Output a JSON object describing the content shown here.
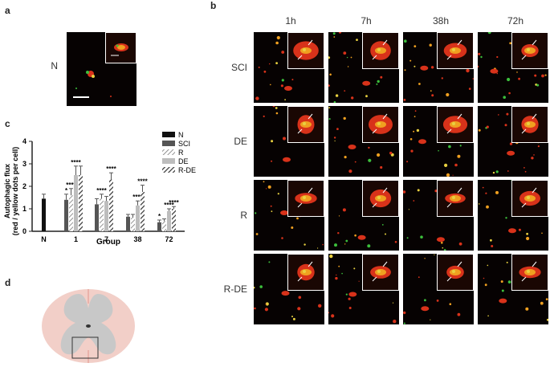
{
  "panels": {
    "a": {
      "label": "a",
      "row_label": "N"
    },
    "b": {
      "label": "b",
      "columns": [
        "1h",
        "7h",
        "38h",
        "72h"
      ],
      "rows": [
        "SCI",
        "DE",
        "R",
        "R-DE"
      ]
    },
    "c": {
      "label": "c"
    },
    "d": {
      "label": "d"
    }
  },
  "chart_data": {
    "type": "bar",
    "ylabel": "Autophagic flux\n(red / yellow dots per cell)",
    "ylabel_line1": "Autophagic flux",
    "ylabel_line2": "(red / yellow dots per cell)",
    "xlabel": "Group",
    "ylim": [
      0,
      4
    ],
    "yticks": [
      "0",
      "1",
      "2",
      "3",
      "4"
    ],
    "control": {
      "category": "N",
      "value": 1.45,
      "error": 0.2
    },
    "categories": [
      "1",
      "7",
      "38",
      "72"
    ],
    "series": [
      {
        "name": "N",
        "color": "#111111"
      },
      {
        "name": "SCI",
        "values": [
          1.4,
          1.2,
          0.65,
          0.4
        ],
        "errors": [
          0.25,
          0.25,
          0.1,
          0.1
        ],
        "color": "#555555",
        "pattern": "solid"
      },
      {
        "name": "R",
        "values": [
          1.6,
          1.45,
          0.6,
          0.45
        ],
        "errors": [
          0.3,
          0.2,
          0.15,
          0.1
        ],
        "color": "#bbbbbb",
        "pattern": "hatch-light"
      },
      {
        "name": "DE",
        "values": [
          2.5,
          1.35,
          1.15,
          0.9
        ],
        "errors": [
          0.4,
          0.2,
          0.2,
          0.1
        ],
        "color": "#bdbdbd",
        "pattern": "solid"
      },
      {
        "name": "R-DE",
        "values": [
          2.5,
          2.3,
          1.75,
          1.0
        ],
        "errors": [
          0.4,
          0.3,
          0.3,
          0.1
        ],
        "color": "#444444",
        "pattern": "hatch-dark"
      }
    ],
    "annotations": [
      {
        "category": "1",
        "series": "SCI",
        "text": "*"
      },
      {
        "category": "1",
        "series": "R",
        "text": "****"
      },
      {
        "category": "1",
        "series": "DE",
        "text": "****"
      },
      {
        "category": "7",
        "series": "R",
        "text": "****"
      },
      {
        "category": "7",
        "series": "R-DE",
        "text": "****"
      },
      {
        "category": "38",
        "series": "DE",
        "text": "****"
      },
      {
        "category": "38",
        "series": "R-DE",
        "text": "****"
      },
      {
        "category": "72",
        "series": "SCI",
        "text": "*"
      },
      {
        "category": "72",
        "series": "DE",
        "text": "****"
      },
      {
        "category": "72",
        "series": "R-DE",
        "text": "****"
      }
    ],
    "legend_position": "top-right",
    "grid": false
  },
  "colors": {
    "tissue_red": "#d8321a",
    "tissue_orange": "#f0a020",
    "tissue_yellow": "#e8d040",
    "tissue_green": "#3cbf3c",
    "cord_white_matter": "#f2cfc8",
    "cord_gray_matter": "#c8c8c8"
  }
}
